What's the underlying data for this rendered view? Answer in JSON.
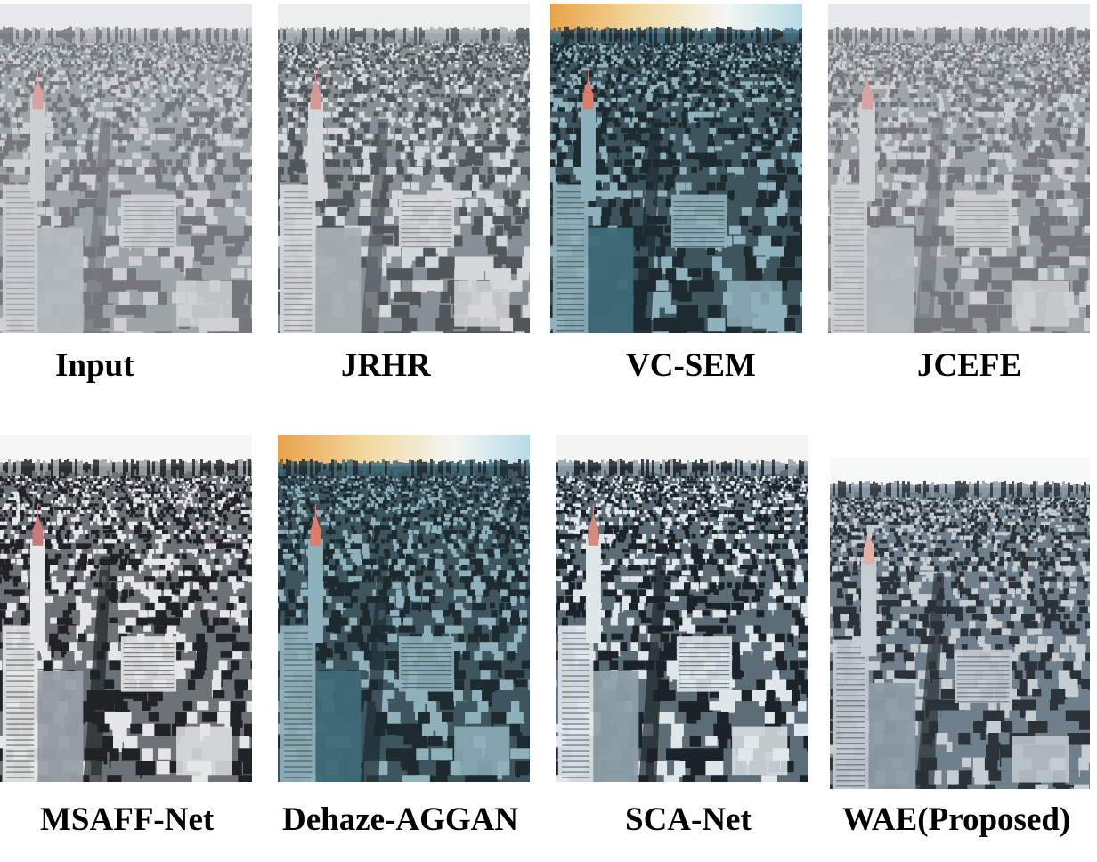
{
  "figure": {
    "panels": [
      {
        "label": "Input",
        "tone": "hazy"
      },
      {
        "label": "JRHR",
        "tone": "hazy-sharp"
      },
      {
        "label": "VC-SEM",
        "tone": "dark-cyan-orange-sky"
      },
      {
        "label": "JCEFE",
        "tone": "hazy"
      },
      {
        "label": "MSAFF-Net",
        "tone": "high-contrast-gray"
      },
      {
        "label": "Dehaze-AGGAN",
        "tone": "dark-cyan-orange-sky"
      },
      {
        "label": "SCA-Net",
        "tone": "high-contrast-cool"
      },
      {
        "label": "WAE(Proposed)",
        "tone": "natural-clear"
      }
    ],
    "colors": {
      "hazy": {
        "sky": "#eef0f0",
        "skyline": "#a8adb2",
        "city": "#8a8f94",
        "shadow": "#4e5257",
        "light": "#c9ccce",
        "accent": "#d98c8c"
      },
      "hazy-sharp": {
        "sky": "#f2f3f3",
        "skyline": "#a0a6ab",
        "city": "#7d848a",
        "shadow": "#3d4247",
        "light": "#d5d8da",
        "accent": "#d98c8c"
      },
      "dark-cyan-orange-sky": {
        "sky": "#e9a34a",
        "skyline": "#3f6a78",
        "city": "#3f555e",
        "shadow": "#1d2a30",
        "light": "#8fb1bb",
        "accent": "#e07a6a"
      },
      "high-contrast-gray": {
        "sky": "#f6f6f4",
        "skyline": "#9aa0a5",
        "city": "#6d7277",
        "shadow": "#202326",
        "light": "#e4e6e7",
        "accent": "#c97a7a"
      },
      "high-contrast-cool": {
        "sky": "#f4f4f2",
        "skyline": "#8fa0aa",
        "city": "#5d6d77",
        "shadow": "#1b2328",
        "light": "#dfe7eb",
        "accent": "#d7897e"
      },
      "natural-clear": {
        "sky": "#f7f8f8",
        "skyline": "#8c9ba6",
        "city": "#6f7f8b",
        "shadow": "#2b3238",
        "light": "#c5ccd2",
        "accent": "#e0b0a8"
      }
    }
  }
}
